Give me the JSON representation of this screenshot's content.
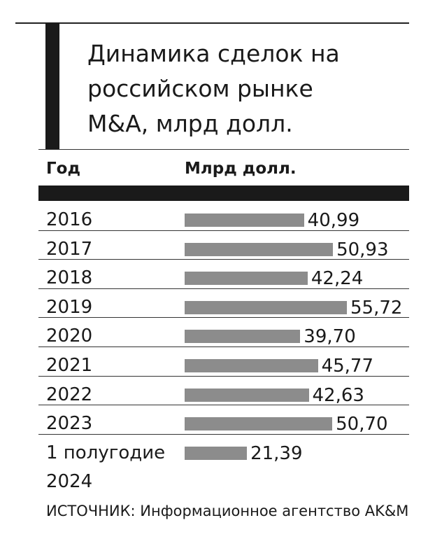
{
  "chart_data": {
    "type": "bar",
    "title": "Динамика сделок на российском рынке M&A, млрд долл.",
    "category_header": "Год",
    "value_header": "Млрд долл.",
    "categories": [
      "2016",
      "2017",
      "2018",
      "2019",
      "2020",
      "2021",
      "2022",
      "2023",
      "1 полугодие 2024"
    ],
    "values": [
      40.99,
      50.93,
      42.24,
      55.72,
      39.7,
      45.77,
      42.63,
      50.7,
      21.39
    ],
    "value_labels": [
      "40,99",
      "50,93",
      "42,24",
      "55,72",
      "39,70",
      "45,77",
      "42,63",
      "50,70",
      "21,39"
    ],
    "color": "#8c8c8c",
    "source": "ИСТОЧНИК: Информационное агентство AK&M"
  }
}
